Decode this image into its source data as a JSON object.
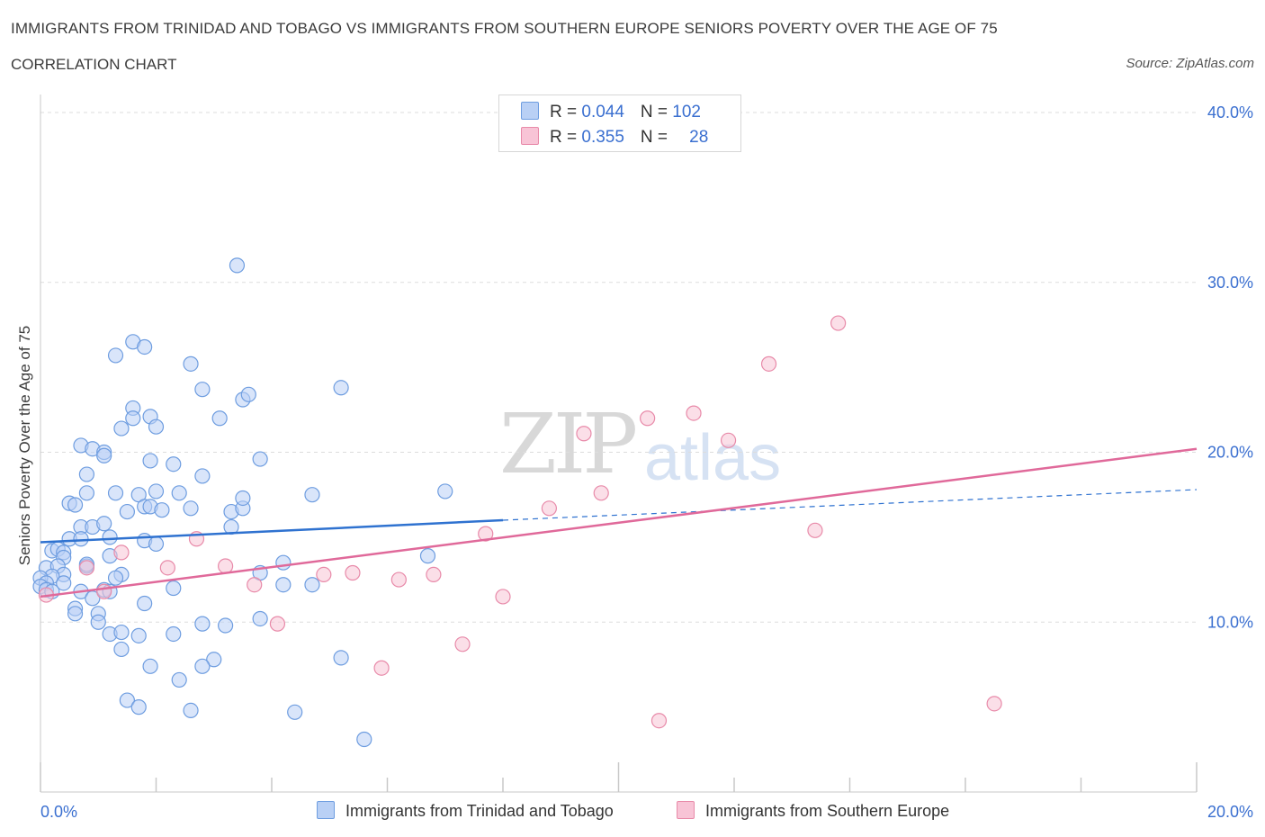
{
  "header": {
    "title": "IMMIGRANTS FROM TRINIDAD AND TOBAGO VS IMMIGRANTS FROM SOUTHERN EUROPE SENIORS POVERTY OVER THE AGE OF 75",
    "subtitle": "CORRELATION CHART",
    "source": "Source: ZipAtlas.com"
  },
  "watermark": {
    "zip": "ZIP",
    "atlas": "atlas"
  },
  "legend_top": {
    "rows": [
      {
        "r_label": "R = ",
        "r_value": "0.044",
        "n_label": "N = ",
        "n_value": "102"
      },
      {
        "r_label": "R = ",
        "r_value": "0.355",
        "n_label": "N = ",
        "n_value": "28"
      }
    ]
  },
  "colors": {
    "blue_fill": "#b9d0f5",
    "blue_stroke": "#6e9de0",
    "blue_line": "#2f72d0",
    "pink_fill": "#f8c4d6",
    "pink_stroke": "#e88aa9",
    "pink_line": "#e0699a",
    "axis_text": "#3a6fd0",
    "grid": "#dddddd"
  },
  "chart_data": {
    "type": "scatter",
    "title": "IMMIGRANTS FROM TRINIDAD AND TOBAGO VS IMMIGRANTS FROM SOUTHERN EUROPE SENIORS POVERTY OVER THE AGE OF 75",
    "xlabel": "",
    "ylabel": "Seniors Poverty Over the Age of 75",
    "xlim": [
      0,
      20
    ],
    "ylim": [
      0,
      40
    ],
    "x_tick_labels": [
      {
        "value": 0,
        "label": "0.0%"
      },
      {
        "value": 20,
        "label": "20.0%"
      }
    ],
    "y_tick_labels": [
      {
        "value": 10,
        "label": "10.0%"
      },
      {
        "value": 20,
        "label": "20.0%"
      },
      {
        "value": 30,
        "label": "30.0%"
      },
      {
        "value": 40,
        "label": "40.0%"
      }
    ],
    "series": [
      {
        "name": "Immigrants from Trinidad and Tobago",
        "color": "blue",
        "trend": {
          "x0": 0,
          "y0": 14.7,
          "x1": 8,
          "y1": 16.0,
          "dash_to_x": 20,
          "dash_to_y": 17.8
        },
        "points": [
          [
            3.4,
            31.0
          ],
          [
            1.6,
            26.5
          ],
          [
            1.3,
            25.7
          ],
          [
            1.8,
            26.2
          ],
          [
            2.6,
            25.2
          ],
          [
            2.8,
            23.7
          ],
          [
            3.5,
            23.1
          ],
          [
            3.6,
            23.4
          ],
          [
            5.2,
            23.8
          ],
          [
            1.6,
            22.6
          ],
          [
            1.6,
            22.0
          ],
          [
            1.9,
            22.1
          ],
          [
            3.1,
            22.0
          ],
          [
            2.0,
            21.5
          ],
          [
            1.4,
            21.4
          ],
          [
            0.7,
            20.4
          ],
          [
            0.9,
            20.2
          ],
          [
            1.1,
            20.0
          ],
          [
            1.1,
            19.8
          ],
          [
            3.8,
            19.6
          ],
          [
            1.9,
            19.5
          ],
          [
            2.3,
            19.3
          ],
          [
            0.8,
            18.7
          ],
          [
            2.8,
            18.6
          ],
          [
            0.8,
            17.6
          ],
          [
            1.3,
            17.6
          ],
          [
            1.7,
            17.5
          ],
          [
            2.0,
            17.7
          ],
          [
            2.4,
            17.6
          ],
          [
            4.7,
            17.5
          ],
          [
            7.0,
            17.7
          ],
          [
            0.5,
            17.0
          ],
          [
            0.6,
            16.9
          ],
          [
            1.8,
            16.8
          ],
          [
            1.9,
            16.8
          ],
          [
            2.1,
            16.6
          ],
          [
            2.6,
            16.7
          ],
          [
            3.3,
            16.5
          ],
          [
            3.5,
            16.7
          ],
          [
            3.5,
            17.3
          ],
          [
            1.5,
            16.5
          ],
          [
            0.7,
            15.6
          ],
          [
            0.9,
            15.6
          ],
          [
            1.1,
            15.8
          ],
          [
            3.3,
            15.6
          ],
          [
            0.5,
            14.9
          ],
          [
            0.7,
            14.9
          ],
          [
            1.2,
            15.0
          ],
          [
            1.8,
            14.8
          ],
          [
            2.0,
            14.6
          ],
          [
            0.2,
            14.2
          ],
          [
            0.3,
            14.3
          ],
          [
            0.4,
            14.1
          ],
          [
            0.4,
            13.8
          ],
          [
            1.2,
            13.9
          ],
          [
            4.2,
            13.5
          ],
          [
            6.7,
            13.9
          ],
          [
            0.1,
            13.2
          ],
          [
            0.3,
            13.3
          ],
          [
            0.8,
            13.3
          ],
          [
            0.8,
            13.4
          ],
          [
            0.4,
            12.8
          ],
          [
            0.2,
            12.7
          ],
          [
            0.0,
            12.6
          ],
          [
            1.4,
            12.8
          ],
          [
            1.3,
            12.6
          ],
          [
            3.8,
            12.9
          ],
          [
            0.1,
            12.3
          ],
          [
            0.4,
            12.3
          ],
          [
            0.0,
            12.1
          ],
          [
            0.1,
            11.9
          ],
          [
            0.2,
            11.8
          ],
          [
            0.7,
            11.8
          ],
          [
            1.1,
            11.9
          ],
          [
            1.2,
            11.8
          ],
          [
            0.9,
            11.4
          ],
          [
            2.3,
            12.0
          ],
          [
            4.2,
            12.2
          ],
          [
            4.7,
            12.2
          ],
          [
            1.8,
            11.1
          ],
          [
            0.6,
            10.8
          ],
          [
            0.6,
            10.5
          ],
          [
            1.0,
            10.5
          ],
          [
            1.0,
            10.0
          ],
          [
            3.8,
            10.2
          ],
          [
            2.8,
            9.9
          ],
          [
            3.2,
            9.8
          ],
          [
            1.2,
            9.3
          ],
          [
            1.4,
            9.4
          ],
          [
            1.7,
            9.2
          ],
          [
            2.3,
            9.3
          ],
          [
            1.4,
            8.4
          ],
          [
            3.0,
            7.8
          ],
          [
            2.8,
            7.4
          ],
          [
            1.9,
            7.4
          ],
          [
            5.2,
            7.9
          ],
          [
            2.4,
            6.6
          ],
          [
            1.5,
            5.4
          ],
          [
            1.7,
            5.0
          ],
          [
            2.6,
            4.8
          ],
          [
            4.4,
            4.7
          ],
          [
            5.6,
            3.1
          ]
        ]
      },
      {
        "name": "Immigrants from Southern Europe",
        "color": "pink",
        "trend": {
          "x0": 0,
          "y0": 11.5,
          "x1": 20,
          "y1": 20.2
        },
        "points": [
          [
            13.8,
            27.6
          ],
          [
            12.6,
            25.2
          ],
          [
            11.3,
            22.3
          ],
          [
            10.5,
            22.0
          ],
          [
            9.4,
            21.1
          ],
          [
            11.9,
            20.7
          ],
          [
            9.7,
            17.6
          ],
          [
            8.8,
            16.7
          ],
          [
            13.4,
            15.4
          ],
          [
            7.7,
            15.2
          ],
          [
            2.7,
            14.9
          ],
          [
            1.4,
            14.1
          ],
          [
            0.8,
            13.2
          ],
          [
            2.2,
            13.2
          ],
          [
            3.2,
            13.3
          ],
          [
            4.9,
            12.8
          ],
          [
            5.4,
            12.9
          ],
          [
            6.2,
            12.5
          ],
          [
            6.8,
            12.8
          ],
          [
            3.7,
            12.2
          ],
          [
            1.1,
            11.8
          ],
          [
            8.0,
            11.5
          ],
          [
            0.1,
            11.6
          ],
          [
            4.1,
            9.9
          ],
          [
            7.3,
            8.7
          ],
          [
            5.9,
            7.3
          ],
          [
            10.7,
            4.2
          ],
          [
            16.5,
            5.2
          ]
        ]
      }
    ]
  },
  "legend_bottom": {
    "items": [
      {
        "label": "Immigrants from Trinidad and Tobago"
      },
      {
        "label": "Immigrants from Southern Europe"
      }
    ]
  }
}
